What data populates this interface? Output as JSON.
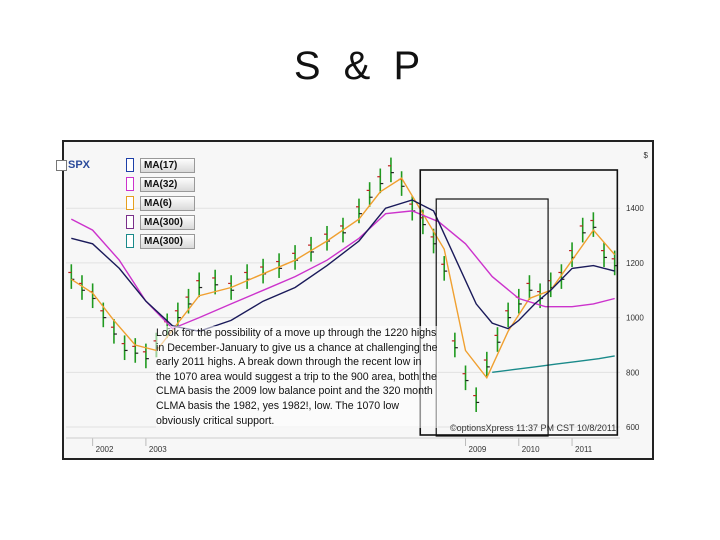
{
  "slide": {
    "title": "S & P"
  },
  "chart_data": {
    "type": "line",
    "symbol": "SPX",
    "currency_label": "$",
    "y_ticks": [
      "1400",
      "1200",
      "1000",
      "800",
      "600"
    ],
    "y_tick_values": [
      1400,
      1200,
      1000,
      800,
      600
    ],
    "ylim": [
      560,
      1620
    ],
    "x_ticks": [
      "2002",
      "2003",
      "2009",
      "2010",
      "2011"
    ],
    "x_tick_positions": [
      2002.0,
      2003.0,
      2009.0,
      2010.0,
      2011.0
    ],
    "xlim": [
      2001.5,
      2011.9
    ],
    "legend": [
      {
        "label": "MA(17)",
        "color": "#f0a030",
        "marker": "#1d3fa8"
      },
      {
        "label": "MA(32)",
        "color": "#cc33cc",
        "marker": "#cc33cc"
      },
      {
        "label": "MA(6)",
        "color": "#e6a020",
        "marker": "#e6a020"
      },
      {
        "label": "MA(300)",
        "color": "#7a2f8a",
        "marker": "#7a2f8a"
      },
      {
        "label": "MA(300)",
        "color": "#1a8a8a",
        "marker": "#1a8a8a"
      }
    ],
    "series": [
      {
        "name": "SPX",
        "color": "#1f9a1f",
        "x": [
          2001.6,
          2001.8,
          2002.0,
          2002.2,
          2002.4,
          2002.6,
          2002.8,
          2003.0,
          2003.2,
          2003.4,
          2003.6,
          2003.8,
          2004.0,
          2004.3,
          2004.6,
          2004.9,
          2005.2,
          2005.5,
          2005.8,
          2006.1,
          2006.4,
          2006.7,
          2007.0,
          2007.2,
          2007.4,
          2007.6,
          2007.8,
          2008.0,
          2008.2,
          2008.4,
          2008.6,
          2008.8,
          2009.0,
          2009.2,
          2009.4,
          2009.6,
          2009.8,
          2010.0,
          2010.2,
          2010.4,
          2010.6,
          2010.8,
          2011.0,
          2011.2,
          2011.4,
          2011.6,
          2011.8
        ],
        "y": [
          1150,
          1110,
          1080,
          1010,
          950,
          890,
          880,
          860,
          900,
          970,
          1010,
          1060,
          1120,
          1130,
          1110,
          1150,
          1170,
          1190,
          1220,
          1250,
          1290,
          1320,
          1390,
          1450,
          1500,
          1540,
          1490,
          1400,
          1350,
          1280,
          1180,
          900,
          780,
          700,
          830,
          920,
          1010,
          1060,
          1110,
          1080,
          1120,
          1150,
          1230,
          1320,
          1340,
          1230,
          1200
        ]
      },
      {
        "name": "MA(17)",
        "color": "#f0a030",
        "x": [
          2001.6,
          2002.0,
          2002.4,
          2002.8,
          2003.2,
          2003.6,
          2004.0,
          2004.6,
          2005.2,
          2005.8,
          2006.4,
          2007.0,
          2007.4,
          2007.8,
          2008.2,
          2008.6,
          2009.0,
          2009.4,
          2009.8,
          2010.2,
          2010.6,
          2011.0,
          2011.4,
          2011.8
        ],
        "y": [
          1140,
          1090,
          990,
          900,
          880,
          980,
          1080,
          1110,
          1160,
          1210,
          1280,
          1360,
          1460,
          1510,
          1380,
          1250,
          880,
          780,
          950,
          1070,
          1100,
          1210,
          1320,
          1230
        ]
      },
      {
        "name": "MA(32)",
        "color": "#cc33cc",
        "x": [
          2001.6,
          2002.0,
          2002.5,
          2003.0,
          2003.5,
          2004.0,
          2004.6,
          2005.2,
          2005.8,
          2006.4,
          2007.0,
          2007.5,
          2008.0,
          2008.5,
          2009.0,
          2009.5,
          2010.0,
          2010.5,
          2011.0,
          2011.4,
          2011.8
        ],
        "y": [
          1360,
          1320,
          1210,
          1060,
          960,
          1000,
          1050,
          1100,
          1150,
          1210,
          1290,
          1380,
          1390,
          1350,
          1270,
          1150,
          1070,
          1040,
          1040,
          1050,
          1070
        ]
      },
      {
        "name": "MA(300)",
        "color": "#1a1a5a",
        "x": [
          2001.6,
          2002.0,
          2002.5,
          2003.0,
          2003.5,
          2004.0,
          2004.6,
          2005.2,
          2005.8,
          2006.4,
          2007.0,
          2007.5,
          2008.0,
          2008.4,
          2008.8,
          2009.2,
          2009.5,
          2009.8,
          2010.0,
          2010.3,
          2010.6,
          2011.0,
          2011.4,
          2011.8
        ],
        "y": [
          1290,
          1270,
          1180,
          1060,
          970,
          950,
          990,
          1060,
          1110,
          1190,
          1280,
          1400,
          1430,
          1390,
          1220,
          1050,
          980,
          960,
          990,
          1050,
          1100,
          1180,
          1190,
          1170
        ]
      },
      {
        "name": "MA(300)",
        "color": "#1a8a8a",
        "x": [
          2009.5,
          2009.9,
          2010.3,
          2010.7,
          2011.1,
          2011.5,
          2011.8
        ],
        "y": [
          800,
          810,
          820,
          830,
          840,
          850,
          860
        ]
      }
    ],
    "annotation": "Look for the possibility of a move up through the 1220 highs in December-January to give us a chance at challenging the early 2011 highs.  A break down through the recent low in the 1070 area would suggest a trip to the 900 area, both the CLMA basis the 2009 low balance point and the 320 month CLMA basis the 1982, yes 1982!, low.  The 1070 low obviously critical support.",
    "watermark": "©optionsXpress 11:37 PM CST 10/8/2011"
  }
}
